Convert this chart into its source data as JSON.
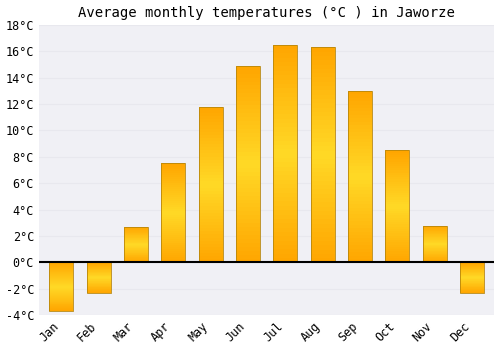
{
  "title": "Average monthly temperatures (°C ) in Jaworze",
  "months": [
    "Jan",
    "Feb",
    "Mar",
    "Apr",
    "May",
    "Jun",
    "Jul",
    "Aug",
    "Sep",
    "Oct",
    "Nov",
    "Dec"
  ],
  "values": [
    -3.7,
    -2.3,
    2.7,
    7.5,
    11.8,
    14.9,
    16.5,
    16.3,
    13.0,
    8.5,
    2.8,
    -2.3
  ],
  "bar_color_face": "#FFA500",
  "bar_color_edge": "#B8860B",
  "ylim": [
    -4,
    18
  ],
  "yticks": [
    -4,
    -2,
    0,
    2,
    4,
    6,
    8,
    10,
    12,
    14,
    16,
    18
  ],
  "ytick_labels": [
    "-4°C",
    "-2°C",
    "0°C",
    "2°C",
    "4°C",
    "6°C",
    "8°C",
    "10°C",
    "12°C",
    "14°C",
    "16°C",
    "18°C"
  ],
  "background_color": "#ffffff",
  "plot_bg_color": "#f0f0f5",
  "grid_color": "#e8e8ee",
  "title_fontsize": 10,
  "tick_fontsize": 8.5
}
